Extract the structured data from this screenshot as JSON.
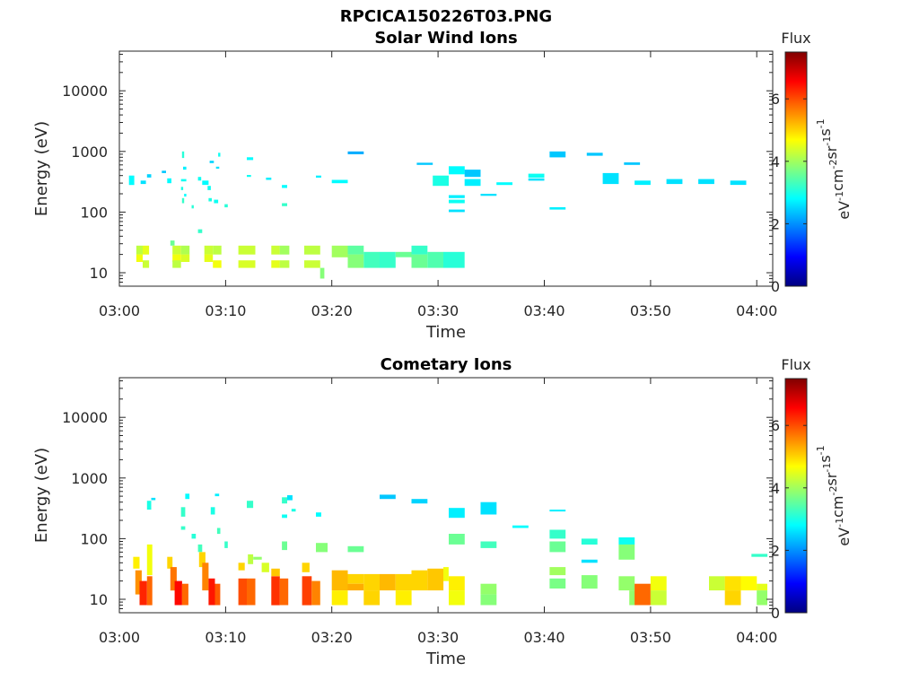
{
  "figure_title": "RPCICA150226T03.PNG",
  "chart_data": [
    {
      "type": "heatmap",
      "title": "Solar Wind Ions",
      "xlabel": "Time",
      "ylabel": "Energy (eV)",
      "y_scale": "log",
      "ylim": [
        6,
        45000
      ],
      "xlim_minutes": [
        0,
        61.5
      ],
      "x_ticks": [
        "03:00",
        "03:10",
        "03:20",
        "03:30",
        "03:40",
        "03:50",
        "04:00"
      ],
      "x_tick_minutes": [
        0,
        10,
        20,
        30,
        40,
        50,
        60
      ],
      "y_ticks": [
        10,
        100,
        1000,
        10000
      ],
      "y_tick_labels": [
        "10",
        "100",
        "1000",
        "10000"
      ],
      "colorbar": {
        "label": "Flux",
        "unit_base": "eV",
        "unit_exps": [
          "-1",
          "-2",
          "-1",
          "-1"
        ],
        "unit_mid": [
          "cm",
          "sr",
          "s"
        ],
        "range": [
          0,
          7.5
        ],
        "ticks": [
          0,
          2,
          4,
          6
        ],
        "tick_labels": [
          "0",
          "2",
          "4",
          "6"
        ],
        "colormap": "jet"
      },
      "cells": [
        [
          0.9,
          1.4,
          280,
          400,
          2.8
        ],
        [
          2.0,
          2.5,
          290,
          330,
          2.6
        ],
        [
          2.6,
          3.0,
          370,
          420,
          2.5
        ],
        [
          4.0,
          4.4,
          440,
          480,
          2.4
        ],
        [
          4.5,
          4.9,
          300,
          360,
          2.8
        ],
        [
          5.8,
          6.3,
          320,
          350,
          2.9
        ],
        [
          5.9,
          6.1,
          780,
          1000,
          3.1
        ],
        [
          6.0,
          6.3,
          500,
          560,
          2.7
        ],
        [
          5.8,
          6.0,
          230,
          260,
          3.0
        ],
        [
          6.1,
          6.3,
          180,
          200,
          2.8
        ],
        [
          6.8,
          7.0,
          115,
          130,
          3.1
        ],
        [
          5.9,
          6.1,
          140,
          170,
          3.2
        ],
        [
          7.4,
          7.7,
          330,
          380,
          2.9
        ],
        [
          7.8,
          8.4,
          280,
          330,
          2.8
        ],
        [
          8.3,
          8.6,
          230,
          270,
          2.9
        ],
        [
          8.4,
          8.7,
          150,
          170,
          3.0
        ],
        [
          8.5,
          8.9,
          640,
          700,
          2.5
        ],
        [
          9.1,
          9.4,
          520,
          560,
          2.6
        ],
        [
          9.3,
          9.5,
          820,
          950,
          2.9
        ],
        [
          8.9,
          9.3,
          140,
          160,
          2.9
        ],
        [
          9.9,
          10.2,
          120,
          135,
          3.1
        ],
        [
          7.4,
          7.8,
          45,
          52,
          3.2
        ],
        [
          12.0,
          12.6,
          720,
          800,
          2.8
        ],
        [
          12.0,
          12.4,
          380,
          410,
          2.9
        ],
        [
          13.8,
          14.3,
          340,
          370,
          2.7
        ],
        [
          15.3,
          15.8,
          250,
          280,
          2.8
        ],
        [
          15.3,
          15.8,
          125,
          140,
          3.2
        ],
        [
          18.5,
          19.0,
          370,
          400,
          2.7
        ],
        [
          20.0,
          21.5,
          300,
          340,
          2.8
        ],
        [
          21.5,
          23.0,
          900,
          1000,
          2.2
        ],
        [
          28.0,
          29.5,
          600,
          650,
          2.4
        ],
        [
          29.5,
          31.0,
          270,
          400,
          3.0
        ],
        [
          31.0,
          32.5,
          420,
          570,
          2.8
        ],
        [
          32.5,
          34.0,
          270,
          350,
          2.7
        ],
        [
          32.5,
          34.0,
          380,
          500,
          2.4
        ],
        [
          31.0,
          32.5,
          140,
          160,
          2.9
        ],
        [
          31.0,
          32.5,
          170,
          190,
          2.7
        ],
        [
          31.0,
          32.5,
          100,
          110,
          2.6
        ],
        [
          34.0,
          35.5,
          185,
          200,
          2.6
        ],
        [
          35.5,
          37.0,
          280,
          310,
          2.8
        ],
        [
          38.5,
          40.0,
          330,
          360,
          2.6
        ],
        [
          38.5,
          40.0,
          370,
          430,
          2.9
        ],
        [
          40.5,
          42.0,
          800,
          1000,
          2.4
        ],
        [
          40.5,
          42.0,
          110,
          120,
          2.7
        ],
        [
          44.0,
          45.5,
          850,
          950,
          2.4
        ],
        [
          45.5,
          47.0,
          290,
          440,
          2.6
        ],
        [
          47.5,
          49.0,
          600,
          660,
          2.4
        ],
        [
          48.5,
          50.0,
          280,
          330,
          2.7
        ],
        [
          51.5,
          53.0,
          290,
          350,
          2.6
        ],
        [
          54.5,
          56.0,
          290,
          350,
          2.6
        ],
        [
          57.5,
          59.0,
          280,
          330,
          2.6
        ],
        [
          1.6,
          2.2,
          20,
          28,
          4.2
        ],
        [
          1.6,
          2.2,
          15,
          20,
          4.6
        ],
        [
          2.2,
          2.8,
          20,
          28,
          4.5
        ],
        [
          2.2,
          2.8,
          12,
          16,
          4.3
        ],
        [
          4.8,
          5.2,
          28,
          34,
          3.6
        ],
        [
          5.0,
          5.8,
          20,
          28,
          4.3
        ],
        [
          5.0,
          5.8,
          15,
          20,
          4.6
        ],
        [
          5.0,
          5.8,
          12,
          16,
          4.2
        ],
        [
          5.8,
          6.6,
          20,
          28,
          4.1
        ],
        [
          5.8,
          6.6,
          15,
          20,
          4.4
        ],
        [
          8.0,
          8.8,
          20,
          28,
          4.3
        ],
        [
          8.0,
          8.8,
          15,
          20,
          4.5
        ],
        [
          8.8,
          9.6,
          20,
          28,
          4.2
        ],
        [
          8.8,
          9.6,
          12,
          16,
          4.6
        ],
        [
          11.2,
          12.8,
          20,
          28,
          4.3
        ],
        [
          11.2,
          12.8,
          12,
          16,
          4.4
        ],
        [
          14.3,
          15.1,
          20,
          28,
          4.3
        ],
        [
          14.3,
          15.1,
          12,
          16,
          4.5
        ],
        [
          15.1,
          16.0,
          20,
          28,
          4.0
        ],
        [
          15.1,
          16.0,
          12,
          16,
          4.2
        ],
        [
          17.4,
          18.9,
          20,
          28,
          4.2
        ],
        [
          17.4,
          18.9,
          12,
          16,
          4.3
        ],
        [
          18.9,
          19.3,
          8,
          12,
          3.8
        ],
        [
          20.0,
          21.5,
          18,
          28,
          4.0
        ],
        [
          21.5,
          23.0,
          20,
          28,
          3.5
        ],
        [
          21.5,
          23.0,
          12,
          20,
          3.8
        ],
        [
          23.0,
          24.5,
          12,
          22,
          3.3
        ],
        [
          24.5,
          26.0,
          12,
          22,
          3.2
        ],
        [
          26.0,
          27.5,
          18,
          22,
          3.6
        ],
        [
          27.5,
          29.0,
          20,
          28,
          3.2
        ],
        [
          27.5,
          29.0,
          12,
          20,
          3.6
        ],
        [
          29.0,
          30.5,
          12,
          22,
          3.4
        ],
        [
          30.5,
          32.5,
          12,
          22,
          3.1
        ]
      ]
    },
    {
      "type": "heatmap",
      "title": "Cometary Ions",
      "xlabel": "Time",
      "ylabel": "Energy (eV)",
      "y_scale": "log",
      "ylim": [
        6,
        45000
      ],
      "xlim_minutes": [
        0,
        61.5
      ],
      "x_ticks": [
        "03:00",
        "03:10",
        "03:20",
        "03:30",
        "03:40",
        "03:50",
        "04:00"
      ],
      "x_tick_minutes": [
        0,
        10,
        20,
        30,
        40,
        50,
        60
      ],
      "y_ticks": [
        10,
        100,
        1000,
        10000
      ],
      "y_tick_labels": [
        "10",
        "100",
        "1000",
        "10000"
      ],
      "colorbar": {
        "label": "Flux",
        "unit_base": "eV",
        "unit_exps": [
          "-1",
          "-2",
          "-1",
          "-1"
        ],
        "unit_mid": [
          "cm",
          "sr",
          "s"
        ],
        "range": [
          0,
          7.5
        ],
        "ticks": [
          0,
          2,
          4,
          6
        ],
        "tick_labels": [
          "0",
          "2",
          "4",
          "6"
        ],
        "colormap": "jet"
      },
      "cells": [
        [
          2.6,
          3.0,
          300,
          420,
          3.0
        ],
        [
          3.0,
          3.4,
          430,
          470,
          2.6
        ],
        [
          5.8,
          6.2,
          230,
          330,
          3.2
        ],
        [
          6.2,
          6.6,
          450,
          550,
          2.8
        ],
        [
          5.8,
          6.2,
          140,
          160,
          3.2
        ],
        [
          6.8,
          7.2,
          100,
          120,
          3.1
        ],
        [
          7.4,
          7.8,
          60,
          80,
          3.3
        ],
        [
          8.6,
          9.0,
          250,
          330,
          3.0
        ],
        [
          9.0,
          9.4,
          500,
          550,
          2.7
        ],
        [
          9.2,
          9.5,
          120,
          150,
          3.3
        ],
        [
          9.9,
          10.2,
          70,
          90,
          3.2
        ],
        [
          12.0,
          12.6,
          320,
          420,
          3.2
        ],
        [
          15.3,
          15.8,
          380,
          480,
          3.2
        ],
        [
          15.8,
          16.3,
          430,
          520,
          2.6
        ],
        [
          15.3,
          15.8,
          220,
          250,
          2.9
        ],
        [
          16.2,
          16.6,
          280,
          310,
          3.0
        ],
        [
          18.5,
          19.0,
          230,
          270,
          2.8
        ],
        [
          15.3,
          15.8,
          65,
          90,
          3.6
        ],
        [
          18.5,
          19.6,
          60,
          85,
          3.8
        ],
        [
          21.5,
          23.0,
          60,
          75,
          3.6
        ],
        [
          24.5,
          26.0,
          450,
          530,
          2.4
        ],
        [
          27.5,
          29.0,
          380,
          450,
          2.5
        ],
        [
          31.0,
          32.5,
          220,
          320,
          2.7
        ],
        [
          31.0,
          32.5,
          80,
          120,
          3.6
        ],
        [
          34.0,
          35.5,
          250,
          400,
          2.6
        ],
        [
          34.0,
          35.5,
          70,
          90,
          3.3
        ],
        [
          37.0,
          38.5,
          150,
          165,
          2.8
        ],
        [
          40.5,
          42.0,
          280,
          300,
          2.7
        ],
        [
          40.5,
          42.0,
          100,
          140,
          3.2
        ],
        [
          40.5,
          42.0,
          60,
          90,
          3.6
        ],
        [
          43.5,
          45.0,
          80,
          100,
          3.1
        ],
        [
          43.5,
          45.0,
          40,
          45,
          2.6
        ],
        [
          47.0,
          48.5,
          80,
          105,
          2.9
        ],
        [
          47.0,
          48.5,
          45,
          80,
          3.8
        ],
        [
          59.5,
          61.0,
          50,
          56,
          3.2
        ],
        [
          40.5,
          42.0,
          25,
          34,
          4.0
        ],
        [
          40.5,
          42.0,
          15,
          22,
          3.7
        ],
        [
          43.5,
          45.0,
          15,
          25,
          3.8
        ],
        [
          47.0,
          48.5,
          14,
          24,
          3.9
        ],
        [
          1.3,
          1.9,
          32,
          50,
          4.8
        ],
        [
          1.5,
          2.1,
          12,
          30,
          5.5
        ],
        [
          1.9,
          2.6,
          8,
          20,
          6.3
        ],
        [
          2.6,
          3.1,
          25,
          80,
          4.6
        ],
        [
          2.6,
          3.1,
          8,
          24,
          5.8
        ],
        [
          4.5,
          5.0,
          32,
          50,
          5.0
        ],
        [
          4.8,
          5.4,
          14,
          34,
          5.7
        ],
        [
          5.2,
          5.9,
          8,
          20,
          6.5
        ],
        [
          5.9,
          6.5,
          8,
          18,
          5.8
        ],
        [
          7.5,
          8.1,
          34,
          60,
          5.0
        ],
        [
          7.8,
          8.4,
          14,
          40,
          5.6
        ],
        [
          8.4,
          9.0,
          8,
          22,
          6.4
        ],
        [
          9.0,
          9.5,
          8,
          18,
          5.9
        ],
        [
          11.2,
          11.8,
          30,
          40,
          5.0
        ],
        [
          11.2,
          12.0,
          8,
          22,
          6.0
        ],
        [
          12.0,
          12.8,
          8,
          22,
          5.8
        ],
        [
          12.1,
          12.6,
          38,
          55,
          4.2
        ],
        [
          12.6,
          13.4,
          45,
          50,
          3.9
        ],
        [
          13.4,
          14.1,
          28,
          40,
          4.4
        ],
        [
          14.3,
          15.1,
          8,
          24,
          6.2
        ],
        [
          15.1,
          15.9,
          8,
          22,
          5.8
        ],
        [
          14.3,
          15.1,
          24,
          32,
          5.1
        ],
        [
          17.2,
          17.9,
          28,
          40,
          5.0
        ],
        [
          17.2,
          18.1,
          8,
          24,
          6.1
        ],
        [
          18.1,
          18.9,
          8,
          20,
          5.6
        ],
        [
          20.0,
          21.5,
          14,
          30,
          5.2
        ],
        [
          20.0,
          21.5,
          8,
          14,
          4.8
        ],
        [
          21.5,
          23.0,
          18,
          26,
          5.0
        ],
        [
          21.5,
          23.0,
          14,
          18,
          5.3
        ],
        [
          23.0,
          24.5,
          14,
          26,
          5.0
        ],
        [
          23.0,
          24.5,
          8,
          14,
          5.0
        ],
        [
          24.5,
          26.0,
          14,
          26,
          5.2
        ],
        [
          26.0,
          27.5,
          14,
          26,
          5.0
        ],
        [
          26.0,
          27.5,
          8,
          14,
          4.8
        ],
        [
          27.5,
          29.0,
          14,
          30,
          5.0
        ],
        [
          29.0,
          30.5,
          14,
          32,
          5.1
        ],
        [
          30.5,
          31.0,
          20,
          34,
          4.6
        ],
        [
          31.0,
          32.5,
          14,
          24,
          4.8
        ],
        [
          31.0,
          32.5,
          8,
          14,
          4.6
        ],
        [
          34.0,
          35.5,
          12,
          18,
          3.9
        ],
        [
          34.0,
          35.5,
          8,
          12,
          3.8
        ],
        [
          48.0,
          49.0,
          8,
          14,
          3.9
        ],
        [
          48.5,
          50.0,
          8,
          18,
          5.8
        ],
        [
          50.0,
          51.5,
          14,
          24,
          4.6
        ],
        [
          50.0,
          51.5,
          8,
          14,
          4.3
        ],
        [
          55.5,
          57.0,
          14,
          24,
          4.3
        ],
        [
          57.0,
          58.5,
          14,
          24,
          4.9
        ],
        [
          57.0,
          58.5,
          8,
          14,
          5.0
        ],
        [
          58.5,
          60.0,
          14,
          24,
          4.7
        ],
        [
          60.0,
          61.0,
          14,
          18,
          4.5
        ],
        [
          60.0,
          61.0,
          8,
          14,
          3.9
        ]
      ]
    }
  ]
}
